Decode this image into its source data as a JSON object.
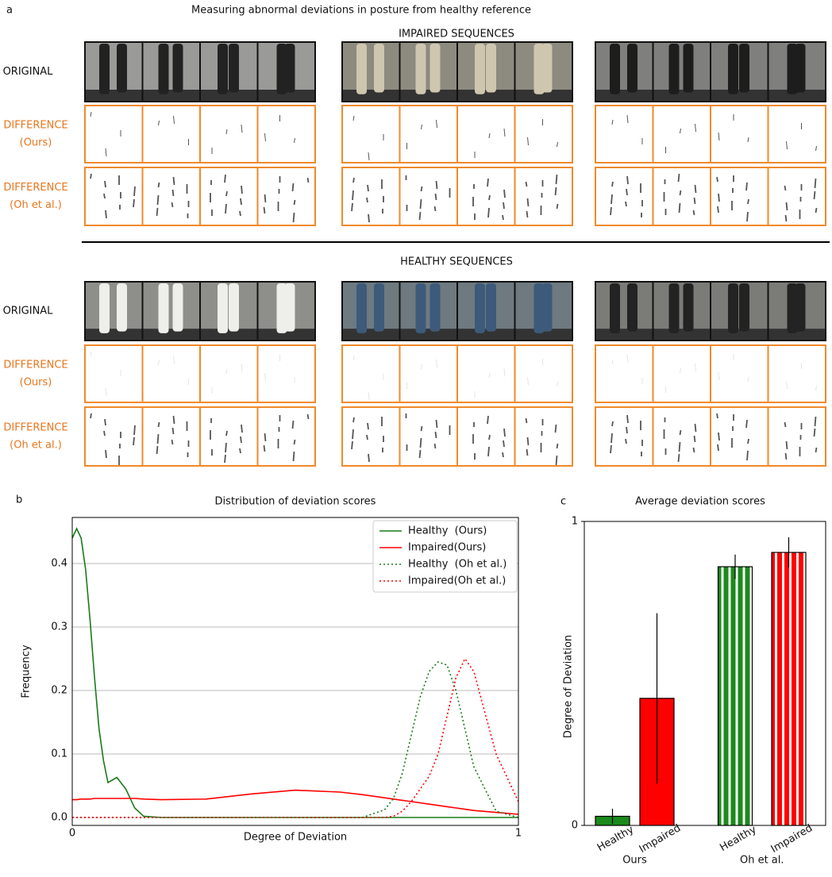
{
  "panel_a": {
    "label": "a",
    "title": "Measuring abnormal deviations in posture from healthy reference",
    "sections": [
      {
        "title": "IMPAIRED SEQUENCES",
        "rows": [
          [
            "ORIGINAL"
          ],
          [
            "DIFFERENCE",
            "(Ours)"
          ],
          [
            "DIFFERENCE",
            "(Oh et al.)"
          ]
        ]
      },
      {
        "title": "HEALTHY SEQUENCES",
        "rows": [
          [
            "ORIGINAL"
          ],
          [
            "DIFFERENCE",
            "(Ours)"
          ],
          [
            "DIFFERENCE",
            "(Oh et al.)"
          ]
        ]
      }
    ]
  },
  "chart_data": [
    {
      "type": "line",
      "label": "b",
      "title": "Distribution of deviation scores",
      "x_label": "Degree of Deviation",
      "y_label": "Frequency",
      "x": [
        0,
        0.01,
        0.02,
        0.03,
        0.04,
        0.05,
        0.06,
        0.07,
        0.08,
        0.1,
        0.12,
        0.14,
        0.16,
        0.2,
        0.3,
        0.4,
        0.5,
        0.6,
        0.65,
        0.7,
        0.72,
        0.74,
        0.76,
        0.78,
        0.8,
        0.82,
        0.84,
        0.86,
        0.88,
        0.9,
        0.95,
        1
      ],
      "series": [
        {
          "name": "Healthy  (Ours)",
          "color": "#1a7a1a",
          "style": "solid",
          "values": [
            0.44,
            0.455,
            0.44,
            0.39,
            0.31,
            0.22,
            0.14,
            0.09,
            0.055,
            0.063,
            0.045,
            0.015,
            0.002,
            0,
            0,
            0,
            0,
            0,
            0,
            0,
            0,
            0,
            0,
            0,
            0,
            0,
            0,
            0,
            0,
            0,
            0,
            0
          ]
        },
        {
          "name": "Impaired(Ours)",
          "color": "#ff0000",
          "style": "solid",
          "values": [
            0.028,
            0.028,
            0.029,
            0.029,
            0.029,
            0.03,
            0.03,
            0.03,
            0.03,
            0.03,
            0.03,
            0.03,
            0.029,
            0.028,
            0.029,
            0.037,
            0.043,
            0.04,
            0.036,
            0.031,
            0.029,
            0.027,
            0.025,
            0.023,
            0.021,
            0.019,
            0.017,
            0.015,
            0.013,
            0.011,
            0.008,
            0.005
          ]
        },
        {
          "name": "Healthy  (Oh et al.)",
          "color": "#1a7a1a",
          "style": "dotted",
          "values": [
            0,
            0,
            0,
            0,
            0,
            0,
            0,
            0,
            0,
            0,
            0,
            0,
            0,
            0,
            0,
            0,
            0,
            0,
            0,
            0.012,
            0.03,
            0.07,
            0.13,
            0.19,
            0.23,
            0.245,
            0.24,
            0.2,
            0.14,
            0.08,
            0.01,
            0
          ]
        },
        {
          "name": "Impaired(Oh et al.)",
          "color": "#ff0000",
          "style": "dotted",
          "values": [
            0,
            0,
            0,
            0,
            0,
            0,
            0,
            0,
            0,
            0,
            0,
            0,
            0,
            0,
            0,
            0,
            0,
            0,
            0,
            0,
            0.002,
            0.01,
            0.025,
            0.045,
            0.065,
            0.1,
            0.16,
            0.22,
            0.25,
            0.23,
            0.1,
            0.025
          ]
        }
      ],
      "xlim": [
        0,
        1
      ],
      "xticks": [
        0,
        1
      ],
      "ylim": [
        -0.0125,
        0.4725
      ],
      "yticks": [
        {
          "value": 0,
          "label": "0.0"
        },
        0.1,
        0.2,
        0.3,
        0.4
      ],
      "grid": true,
      "legend": "upper right"
    },
    {
      "type": "bar",
      "label": "c",
      "title": "Average deviation scores",
      "y_label": "Degree of Deviation",
      "groups": [
        "Ours",
        "Oh et al."
      ],
      "categories": [
        "Healthy",
        "Impaired",
        "Healthy",
        "Impaired"
      ],
      "values": [
        0.03,
        0.418,
        0.851,
        0.898
      ],
      "errors": [
        0.025,
        0.28,
        0.04,
        0.05
      ],
      "colors": [
        "#1a8a1a",
        "#ff0000",
        "#1a8a1a",
        "#ff0000"
      ],
      "striped": [
        false,
        false,
        true,
        true
      ],
      "ylim": [
        0,
        1
      ],
      "yticks": [
        0,
        1
      ]
    }
  ]
}
